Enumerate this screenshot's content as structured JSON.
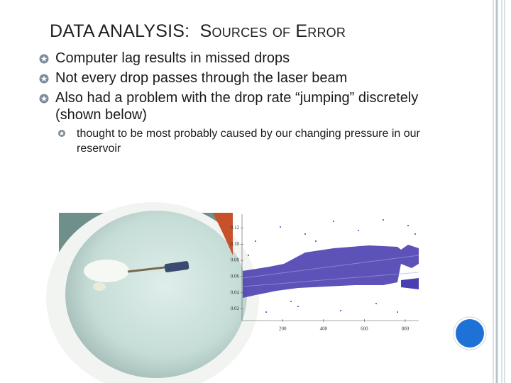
{
  "title": {
    "lead": "DATA ANALYSIS:",
    "trail": "Sources of Error"
  },
  "bullets": [
    {
      "text": "Computer lag results in missed drops"
    },
    {
      "text": "Not every drop passes through the laser beam"
    },
    {
      "text": "Also had a problem with the drop rate “jumping” discretely (shown below)",
      "sub": [
        "thought to be most probably caused by our changing pressure in our reservoir"
      ]
    }
  ],
  "plot": {
    "xlim": [
      -20,
      880
    ],
    "ylim": [
      0.003,
      0.13
    ],
    "xticks": [
      200,
      400,
      600,
      800
    ],
    "yticks": [
      0.12,
      {
        "value": 0.1,
        "label": "0.10"
      },
      0.08,
      0.06,
      0.04,
      0.02
    ]
  }
}
